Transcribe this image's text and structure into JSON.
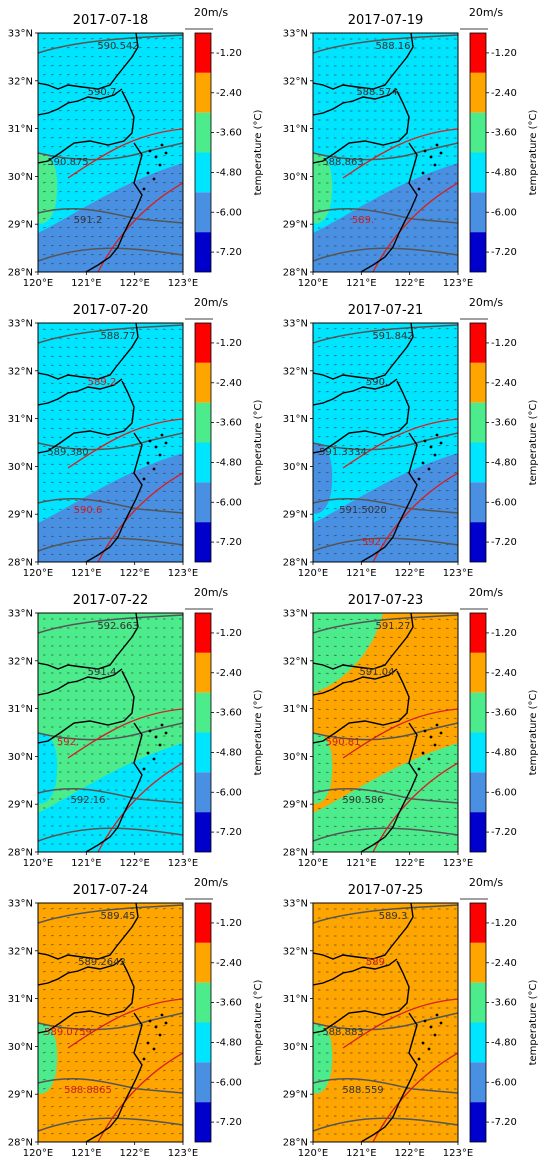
{
  "colorbar": {
    "label": "temperature (°C)",
    "ticks": [
      "-1.20",
      "-2.40",
      "-3.60",
      "-4.80",
      "-6.00",
      "-7.20"
    ],
    "colors": [
      "#ff0000",
      "#ffa500",
      "#4ceb8c",
      "#00e5ff",
      "#4a90e2",
      "#0000cd"
    ]
  },
  "axes": {
    "lat_labels": [
      "33°N",
      "32°N",
      "31°N",
      "30°N",
      "29°N",
      "28°N"
    ],
    "lon_labels": [
      "120°E",
      "121°E",
      "122°E",
      "123°E"
    ]
  },
  "wind_scale": "20m/s",
  "panels": [
    {
      "date": "2017-07-18",
      "fill": [
        "#00e5ff",
        "#00e5ff",
        "#4a90e2",
        "#4ceb8c"
      ],
      "contour_labels": [
        {
          "text": "590.542",
          "color": "dark"
        },
        {
          "text": "590.7",
          "color": "dark"
        },
        {
          "text": "590.875",
          "color": "dark"
        },
        {
          "text": "591.2",
          "color": "dark"
        }
      ]
    },
    {
      "date": "2017-07-19",
      "fill": [
        "#00e5ff",
        "#00e5ff",
        "#4a90e2",
        "#4ceb8c"
      ],
      "contour_labels": [
        {
          "text": "588.16",
          "color": "dark"
        },
        {
          "text": "588.574",
          "color": "dark"
        },
        {
          "text": "588.863",
          "color": "dark"
        },
        {
          "text": "589.",
          "color": "red"
        }
      ]
    },
    {
      "date": "2017-07-20",
      "fill": [
        "#00e5ff",
        "#00e5ff",
        "#4a90e2",
        "#00e5ff"
      ],
      "contour_labels": [
        {
          "text": "588.77",
          "color": "dark"
        },
        {
          "text": "589.2",
          "color": "red"
        },
        {
          "text": "589.380",
          "color": "dark"
        },
        {
          "text": "590.6",
          "color": "red"
        }
      ]
    },
    {
      "date": "2017-07-21",
      "fill": [
        "#00e5ff",
        "#00e5ff",
        "#4a90e2",
        "#4a90e2"
      ],
      "contour_labels": [
        {
          "text": "591.842",
          "color": "dark"
        },
        {
          "text": "590.",
          "color": "dark"
        },
        {
          "text": "591.3334",
          "color": "dark"
        },
        {
          "text": "591.5020",
          "color": "dark"
        },
        {
          "text": "592.",
          "color": "red"
        }
      ]
    },
    {
      "date": "2017-07-22",
      "fill": [
        "#4ceb8c",
        "#4ceb8c",
        "#00e5ff",
        "#00e5ff"
      ],
      "contour_labels": [
        {
          "text": "592.663",
          "color": "dark"
        },
        {
          "text": "591.4",
          "color": "dark"
        },
        {
          "text": "592.",
          "color": "red"
        },
        {
          "text": "592.16",
          "color": "dark"
        }
      ]
    },
    {
      "date": "2017-07-23",
      "fill": [
        "#ffa500",
        "#4ceb8c",
        "#4ceb8c",
        "#4ceb8c"
      ],
      "contour_labels": [
        {
          "text": "591.27",
          "color": "dark"
        },
        {
          "text": "591.04",
          "color": "dark"
        },
        {
          "text": "590.81",
          "color": "red"
        },
        {
          "text": "590.586",
          "color": "dark"
        }
      ]
    },
    {
      "date": "2017-07-24",
      "fill": [
        "#ffa500",
        "#ffa500",
        "#ffa500",
        "#4ceb8c"
      ],
      "contour_labels": [
        {
          "text": "589.45",
          "color": "dark"
        },
        {
          "text": "589.2642",
          "color": "dark"
        },
        {
          "text": "589.0759",
          "color": "red"
        },
        {
          "text": "588.8865",
          "color": "red"
        }
      ]
    },
    {
      "date": "2017-07-25",
      "fill": [
        "#ffa500",
        "#ffa500",
        "#ffa500",
        "#4ceb8c"
      ],
      "contour_labels": [
        {
          "text": "589.3",
          "color": "dark"
        },
        {
          "text": "589.",
          "color": "red"
        },
        {
          "text": "588.883",
          "color": "dark"
        },
        {
          "text": "588.559",
          "color": "dark"
        }
      ]
    }
  ]
}
